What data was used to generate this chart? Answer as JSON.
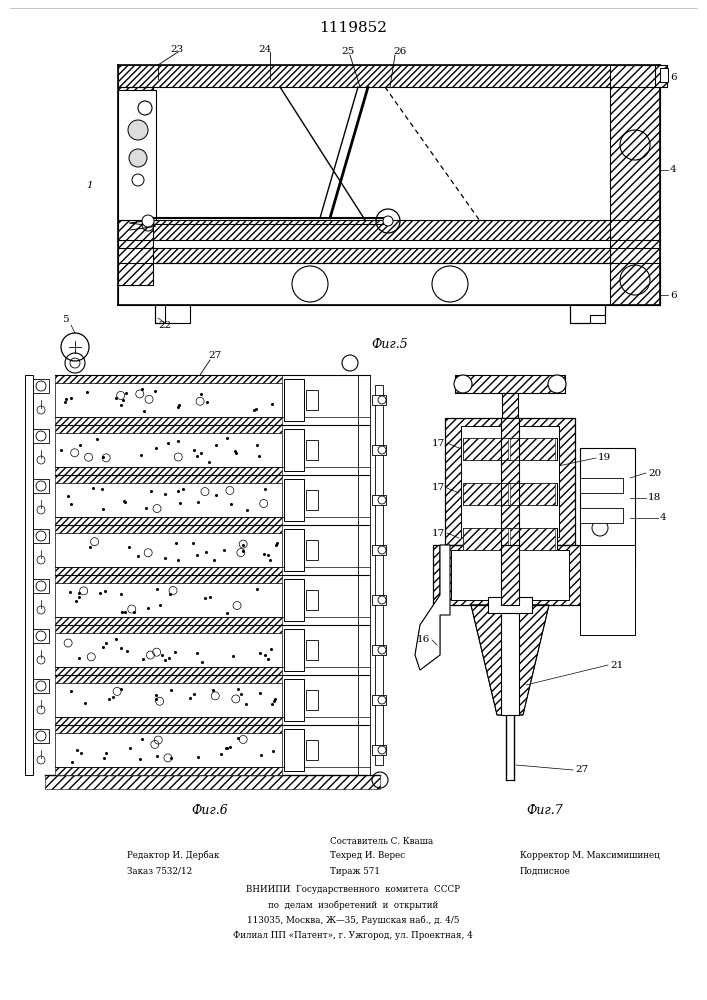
{
  "title": "1119852",
  "title_fontsize": 11,
  "bg_color": "#ffffff",
  "line_color": "#000000",
  "fig5_caption": "Фиг.5",
  "fig6_caption": "Фиг.6",
  "fig7_caption": "Фиг.7",
  "caption_fontsize": 9,
  "label_fontsize": 7.5,
  "footer_fontsize": 6.3
}
